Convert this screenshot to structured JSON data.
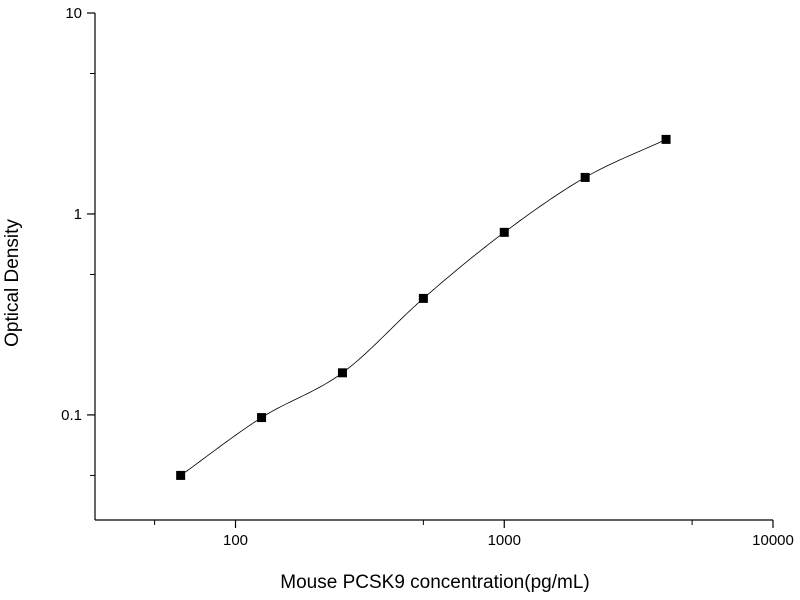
{
  "chart_data": {
    "type": "scatter",
    "title": "",
    "xlabel": "Mouse PCSK9 concentration(pg/mL)",
    "ylabel": "Optical Density",
    "xscale": "log",
    "yscale": "log",
    "xlim": [
      30,
      10000
    ],
    "ylim": [
      0.03,
      10
    ],
    "x_ticks": [
      100,
      1000,
      10000
    ],
    "x_tick_labels": [
      "100",
      "1000",
      "10000"
    ],
    "y_ticks": [
      0.1,
      1,
      10
    ],
    "y_tick_labels": [
      "0.1",
      "1",
      "10"
    ],
    "grid": false,
    "legend": "none",
    "series": [
      {
        "marker": "square",
        "color": "#000000",
        "x": [
          62.5,
          125,
          250,
          500,
          1000,
          2000,
          4000
        ],
        "y": [
          0.05,
          0.097,
          0.162,
          0.38,
          0.81,
          1.52,
          2.35
        ]
      }
    ],
    "fit_curve": {
      "color": "#000000",
      "description": "smooth fitted curve through points"
    }
  }
}
